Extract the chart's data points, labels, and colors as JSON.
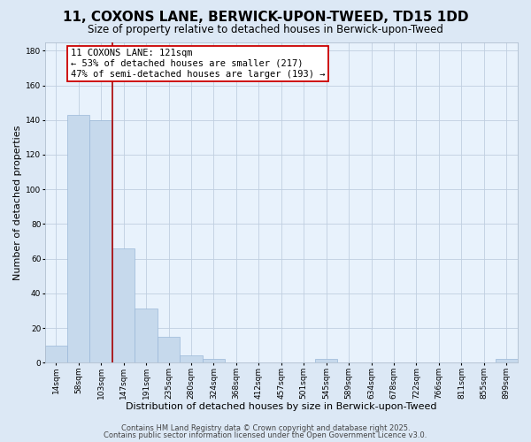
{
  "title": "11, COXONS LANE, BERWICK-UPON-TWEED, TD15 1DD",
  "subtitle": "Size of property relative to detached houses in Berwick-upon-Tweed",
  "xlabel": "Distribution of detached houses by size in Berwick-upon-Tweed",
  "ylabel": "Number of detached properties",
  "categories": [
    "14sqm",
    "58sqm",
    "103sqm",
    "147sqm",
    "191sqm",
    "235sqm",
    "280sqm",
    "324sqm",
    "368sqm",
    "412sqm",
    "457sqm",
    "501sqm",
    "545sqm",
    "589sqm",
    "634sqm",
    "678sqm",
    "722sqm",
    "766sqm",
    "811sqm",
    "855sqm",
    "899sqm"
  ],
  "values": [
    10,
    143,
    140,
    66,
    31,
    15,
    4,
    2,
    0,
    0,
    0,
    0,
    2,
    0,
    0,
    0,
    0,
    0,
    0,
    0,
    2
  ],
  "bar_color": "#c6d9ec",
  "bar_edge_color": "#9ab8d8",
  "vline_x_index": 2.5,
  "vline_color": "#aa0000",
  "annotation_title": "11 COXONS LANE: 121sqm",
  "annotation_line1": "← 53% of detached houses are smaller (217)",
  "annotation_line2": "47% of semi-detached houses are larger (193) →",
  "ylim": [
    0,
    185
  ],
  "yticks": [
    0,
    20,
    40,
    60,
    80,
    100,
    120,
    140,
    160,
    180
  ],
  "footer1": "Contains HM Land Registry data © Crown copyright and database right 2025.",
  "footer2": "Contains public sector information licensed under the Open Government Licence v3.0.",
  "bg_color": "#dce8f5",
  "plot_bg_color": "#e8f2fc",
  "grid_color": "#c0cfe0",
  "title_fontsize": 11,
  "subtitle_fontsize": 8.5,
  "xlabel_fontsize": 8,
  "ylabel_fontsize": 8,
  "tick_fontsize": 6.5,
  "footer_fontsize": 6,
  "ann_fontsize": 7.5
}
